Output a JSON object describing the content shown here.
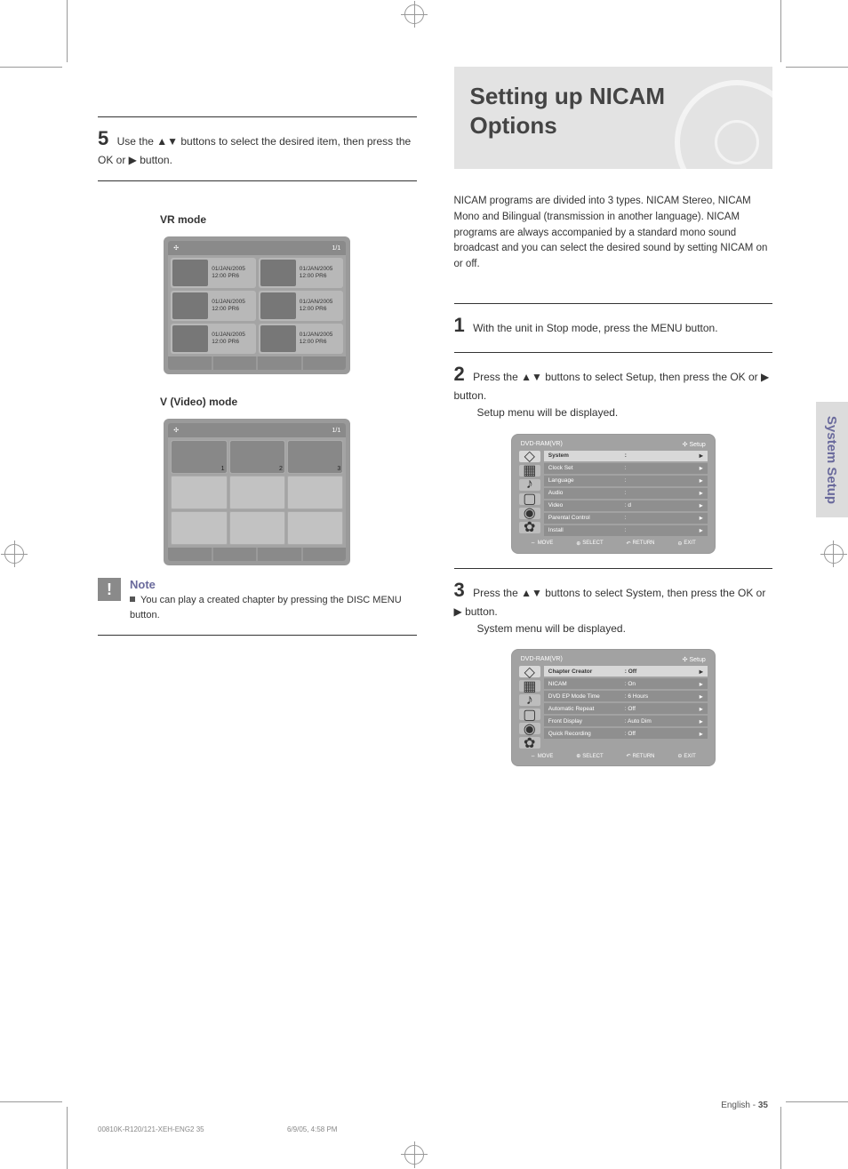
{
  "page": {
    "number": "35",
    "footer_label": "English -",
    "running_footer": "00810K-R120/121-XEH-ENG2   35",
    "running_timestamp": "6/9/05, 4:58 PM"
  },
  "sideTab": "System Setup",
  "sectionTitle": {
    "line1": "Setting up NICAM",
    "line2": "Options"
  },
  "intro": "NICAM programs are divided into 3 types. NICAM Stereo, NICAM Mono and Bilingual (transmission in another language). NICAM programs are always accompanied by a standard mono sound broadcast and you can select the desired sound by setting NICAM on or off.",
  "left": {
    "step5": "Use the ▲▼ buttons to select the desired item, then press the OK or ▶ button.",
    "vr_title": "VR mode",
    "v_title": "V (Video) mode",
    "page_indicator": "1/1",
    "cells": [
      {
        "date": "01/JAN/2005",
        "time": "12:00  PR6"
      },
      {
        "date": "01/JAN/2005",
        "time": "12:00  PR6"
      },
      {
        "date": "01/JAN/2005",
        "time": "12:00  PR6"
      },
      {
        "date": "01/JAN/2005",
        "time": "12:00  PR6"
      },
      {
        "date": "01/JAN/2005",
        "time": "12:00  PR6"
      },
      {
        "date": "01/JAN/2005",
        "time": "12:00  PR6"
      }
    ],
    "note_heading": "Note",
    "note": "You can play a created chapter by pressing the DISC MENU button."
  },
  "right": {
    "step1": "With the unit in Stop mode, press the MENU button.",
    "step2pre": "Press the ▲▼ buttons to select Setup, then press the OK or ▶ button.",
    "step2post": "Setup menu will be displayed.",
    "step3pre": "Press the ▲▼ buttons to select System, then press the OK or ▶ button.",
    "step3post": "System menu will be displayed.",
    "crumb1": "DVD-RAM(VR)",
    "crumb2": "Setup",
    "menu1": {
      "rows": [
        {
          "label": "System",
          "value": "",
          "hl": true
        },
        {
          "label": "Clock Set",
          "value": "",
          "hl": false
        },
        {
          "label": "Language",
          "value": "",
          "hl": false
        },
        {
          "label": "Audio",
          "value": "",
          "hl": false
        },
        {
          "label": "Video",
          "value": "d",
          "hl": false
        },
        {
          "label": "Parental Control",
          "value": "",
          "hl": false
        },
        {
          "label": "Install",
          "value": "",
          "hl": false
        }
      ]
    },
    "menu2": {
      "rows": [
        {
          "label": "Chapter Creator",
          "value": "Off",
          "hl": true
        },
        {
          "label": "NICAM",
          "value": "On",
          "hl": false
        },
        {
          "label": "DVD EP Mode Time",
          "value": "6 Hours",
          "hl": false
        },
        {
          "label": "Automatic Repeat",
          "value": "Off",
          "hl": false
        },
        {
          "label": "Front Display",
          "value": "Auto Dim",
          "hl": false
        },
        {
          "label": "Quick Recording",
          "value": "Off",
          "hl": false
        }
      ]
    },
    "bottom_buttons": [
      "MOVE",
      "SELECT",
      "RETURN",
      "EXIT"
    ]
  },
  "colors": {
    "title_bg": "#e3e3e3",
    "side_tab_bg": "#dcdcdc",
    "accent": "#6a6a9c",
    "shot_bg": "#9a9a9a",
    "shot_row": "#8f8f8f",
    "shot_hl": "#d8d8d8"
  }
}
